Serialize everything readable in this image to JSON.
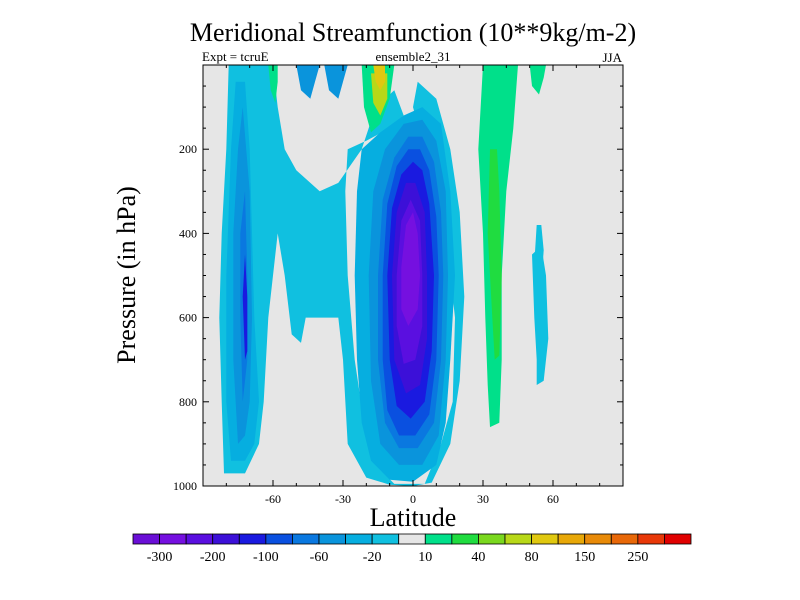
{
  "chart_data": {
    "type": "contour",
    "title": "Meridional Streamfunction (10**9kg/m-2)",
    "subtitle_left": "Expt = tcruE",
    "subtitle_center": "ensemble2_31",
    "subtitle_right": "JJA",
    "xlabel": "Latitude",
    "ylabel": "Pressure (in hPa)",
    "xlim": [
      -90,
      90
    ],
    "ylim": [
      1000,
      0
    ],
    "x_ticks": [
      -60,
      -30,
      0,
      30,
      60
    ],
    "y_ticks": [
      200,
      400,
      600,
      800,
      1000
    ],
    "x_tick_labels": [
      "-60",
      "-30",
      "0",
      "30",
      "60"
    ],
    "y_tick_labels": [
      "200",
      "400",
      "600",
      "800",
      "1000"
    ],
    "background_level_color": "#e6e6e6",
    "colorbar": {
      "colors": [
        "#6a0fd6",
        "#7510e0",
        "#5a0fe0",
        "#3c10d8",
        "#1a1ae0",
        "#0a50e0",
        "#0a78e0",
        "#0a94dc",
        "#06aee0",
        "#10c0e0",
        "#e6e6e6",
        "#00e08a",
        "#20dc40",
        "#7ad81e",
        "#b8d818",
        "#e0c810",
        "#e8a808",
        "#e88a08",
        "#e86808",
        "#e83808",
        "#e00000"
      ],
      "labels": [
        "-300",
        "-200",
        "-100",
        "-60",
        "-20",
        "10",
        "40",
        "80",
        "150",
        "250"
      ],
      "label_after_box": [
        0,
        2,
        4,
        6,
        8,
        10,
        12,
        14,
        16,
        18
      ]
    },
    "regions": [
      {
        "name": "sh-cell-outer",
        "level": "-20",
        "color": "#10c0e0",
        "points": [
          [
            -81,
            970
          ],
          [
            -82,
            800
          ],
          [
            -83,
            600
          ],
          [
            -82,
            400
          ],
          [
            -80,
            200
          ],
          [
            -79,
            0
          ],
          [
            -60,
            0
          ],
          [
            -58,
            100
          ],
          [
            -55,
            200
          ],
          [
            -50,
            250
          ],
          [
            -40,
            300
          ],
          [
            -32,
            280
          ],
          [
            -22,
            200
          ],
          [
            -16,
            100
          ],
          [
            -8,
            60
          ],
          [
            -4,
            120
          ],
          [
            -10,
            150
          ],
          [
            -20,
            180
          ],
          [
            -28,
            200
          ],
          [
            -29,
            300
          ],
          [
            -28,
            500
          ],
          [
            -25,
            700
          ],
          [
            -21,
            850
          ],
          [
            -16,
            950
          ],
          [
            -8,
            995
          ],
          [
            5,
            995
          ],
          [
            12,
            900
          ],
          [
            17,
            800
          ],
          [
            18,
            600
          ],
          [
            16,
            500
          ],
          [
            14,
            400
          ],
          [
            10,
            300
          ],
          [
            5,
            200
          ],
          [
            0,
            100
          ],
          [
            2,
            40
          ],
          [
            10,
            80
          ],
          [
            16,
            200
          ],
          [
            20,
            350
          ],
          [
            22,
            550
          ],
          [
            20,
            750
          ],
          [
            16,
            900
          ],
          [
            8,
            992
          ],
          [
            0,
            1000
          ],
          [
            -10,
            997
          ],
          [
            -20,
            980
          ],
          [
            -28,
            900
          ],
          [
            -30,
            700
          ],
          [
            -32,
            600
          ],
          [
            -46,
            600
          ],
          [
            -48,
            660
          ],
          [
            -52,
            640
          ],
          [
            -55,
            500
          ],
          [
            -58,
            400
          ],
          [
            -62,
            600
          ],
          [
            -64,
            800
          ],
          [
            -66,
            900
          ],
          [
            -72,
            970
          ]
        ]
      },
      {
        "name": "sh-cell-level2",
        "level": "-60",
        "color": "#06aee0",
        "points": [
          [
            -78,
            940
          ],
          [
            -80,
            800
          ],
          [
            -80,
            500
          ],
          [
            -78,
            200
          ],
          [
            -76,
            40
          ],
          [
            -72,
            40
          ],
          [
            -70,
            200
          ],
          [
            -68,
            600
          ],
          [
            -66,
            800
          ],
          [
            -68,
            900
          ],
          [
            -72,
            940
          ]
        ]
      },
      {
        "name": "sh-cell-level3",
        "level": "-100",
        "color": "#0a94dc",
        "points": [
          [
            -75,
            900
          ],
          [
            -77,
            700
          ],
          [
            -77,
            400
          ],
          [
            -75,
            200
          ],
          [
            -73,
            100
          ],
          [
            -70,
            300
          ],
          [
            -69,
            600
          ],
          [
            -70,
            800
          ],
          [
            -72,
            880
          ]
        ]
      },
      {
        "name": "sh-cell-level4",
        "level": "-100",
        "color": "#0a78e0",
        "points": [
          [
            -73,
            800
          ],
          [
            -74,
            600
          ],
          [
            -74,
            400
          ],
          [
            -72,
            300
          ],
          [
            -71,
            500
          ],
          [
            -71,
            700
          ]
        ]
      },
      {
        "name": "sh-cell-level5",
        "level": "-200",
        "color": "#1a1ae0",
        "points": [
          [
            -72,
            700
          ],
          [
            -73,
            550
          ],
          [
            -72,
            450
          ],
          [
            -71,
            550
          ],
          [
            -71,
            680
          ]
        ]
      },
      {
        "name": "hadley-cell-level2",
        "level": "-60",
        "color": "#06aee0",
        "points": [
          [
            -24,
            300
          ],
          [
            -22,
            200
          ],
          [
            -14,
            160
          ],
          [
            -4,
            120
          ],
          [
            4,
            100
          ],
          [
            12,
            140
          ],
          [
            16,
            300
          ],
          [
            18,
            500
          ],
          [
            16,
            700
          ],
          [
            14,
            850
          ],
          [
            10,
            950
          ],
          [
            0,
            990
          ],
          [
            -10,
            985
          ],
          [
            -18,
            940
          ],
          [
            -22,
            850
          ],
          [
            -24,
            700
          ],
          [
            -25,
            500
          ]
        ]
      },
      {
        "name": "hadley-cell-level3",
        "level": "-100",
        "color": "#0a94dc",
        "points": [
          [
            -19,
            500
          ],
          [
            -17,
            300
          ],
          [
            -12,
            200
          ],
          [
            -4,
            140
          ],
          [
            4,
            130
          ],
          [
            10,
            180
          ],
          [
            14,
            300
          ],
          [
            15,
            500
          ],
          [
            14,
            700
          ],
          [
            11,
            880
          ],
          [
            4,
            950
          ],
          [
            -6,
            950
          ],
          [
            -14,
            900
          ],
          [
            -18,
            750
          ]
        ]
      },
      {
        "name": "hadley-cell-level4",
        "level": "-100",
        "color": "#0a78e0",
        "points": [
          [
            -15,
            500
          ],
          [
            -13,
            320
          ],
          [
            -8,
            220
          ],
          [
            -2,
            170
          ],
          [
            4,
            170
          ],
          [
            9,
            230
          ],
          [
            12,
            350
          ],
          [
            13,
            500
          ],
          [
            12,
            700
          ],
          [
            9,
            850
          ],
          [
            2,
            910
          ],
          [
            -6,
            910
          ],
          [
            -12,
            850
          ],
          [
            -15,
            700
          ]
        ]
      },
      {
        "name": "hadley-cell-level5",
        "level": "-200",
        "color": "#0a50e0",
        "points": [
          [
            -13,
            500
          ],
          [
            -11,
            330
          ],
          [
            -7,
            240
          ],
          [
            -2,
            200
          ],
          [
            3,
            200
          ],
          [
            7,
            250
          ],
          [
            10,
            360
          ],
          [
            11,
            500
          ],
          [
            10,
            700
          ],
          [
            7,
            830
          ],
          [
            1,
            880
          ],
          [
            -6,
            880
          ],
          [
            -11,
            820
          ],
          [
            -13,
            700
          ]
        ]
      },
      {
        "name": "hadley-cell-level6",
        "level": "-200",
        "color": "#1a1ae0",
        "points": [
          [
            -11,
            500
          ],
          [
            -9,
            340
          ],
          [
            -5,
            260
          ],
          [
            0,
            230
          ],
          [
            4,
            250
          ],
          [
            7,
            330
          ],
          [
            9,
            500
          ],
          [
            8,
            680
          ],
          [
            5,
            800
          ],
          [
            -1,
            840
          ],
          [
            -7,
            810
          ],
          [
            -10,
            700
          ]
        ]
      },
      {
        "name": "hadley-cell-level7",
        "level": "-300",
        "color": "#3c10d8",
        "points": [
          [
            -9,
            500
          ],
          [
            -7,
            350
          ],
          [
            -3,
            280
          ],
          [
            1,
            280
          ],
          [
            5,
            350
          ],
          [
            6,
            500
          ],
          [
            6,
            650
          ],
          [
            3,
            760
          ],
          [
            -3,
            780
          ],
          [
            -8,
            700
          ]
        ]
      },
      {
        "name": "hadley-cell-level8",
        "level": "-300",
        "color": "#5a0fe0",
        "points": [
          [
            -7,
            500
          ],
          [
            -5,
            370
          ],
          [
            -1,
            320
          ],
          [
            3,
            370
          ],
          [
            4,
            500
          ],
          [
            4,
            620
          ],
          [
            1,
            700
          ],
          [
            -4,
            710
          ],
          [
            -7,
            620
          ]
        ]
      },
      {
        "name": "hadley-cell-core",
        "level": "-300",
        "color": "#7510e0",
        "points": [
          [
            -5,
            480
          ],
          [
            -3,
            380
          ],
          [
            0,
            350
          ],
          [
            2,
            400
          ],
          [
            3,
            500
          ],
          [
            2,
            580
          ],
          [
            -2,
            620
          ],
          [
            -5,
            580
          ]
        ]
      },
      {
        "name": "upper-sh-blue-patch-1",
        "level": "-100",
        "color": "#0a94dc",
        "points": [
          [
            -50,
            0
          ],
          [
            -48,
            60
          ],
          [
            -44,
            80
          ],
          [
            -42,
            40
          ],
          [
            -40,
            0
          ]
        ]
      },
      {
        "name": "upper-sh-blue-patch-2",
        "level": "-100",
        "color": "#0a94dc",
        "points": [
          [
            -38,
            0
          ],
          [
            -36,
            60
          ],
          [
            -32,
            80
          ],
          [
            -30,
            40
          ],
          [
            -28,
            0
          ]
        ]
      },
      {
        "name": "upper-sh-green-1",
        "level": "10",
        "color": "#00e08a",
        "points": [
          [
            -62,
            0
          ],
          [
            -61,
            60
          ],
          [
            -59,
            90
          ],
          [
            -58,
            40
          ],
          [
            -58,
            0
          ]
        ]
      },
      {
        "name": "upper-sh-green-2",
        "level": "10",
        "color": "#00e08a",
        "points": [
          [
            -22,
            0
          ],
          [
            -21,
            100
          ],
          [
            -18,
            160
          ],
          [
            -14,
            140
          ],
          [
            -10,
            80
          ],
          [
            -8,
            0
          ]
        ]
      },
      {
        "name": "upper-sh-yellow",
        "level": "80",
        "color": "#b8d818",
        "points": [
          [
            -18,
            20
          ],
          [
            -17,
            90
          ],
          [
            -14,
            120
          ],
          [
            -11,
            80
          ],
          [
            -11,
            20
          ]
        ]
      },
      {
        "name": "upper-sh-orange",
        "level": "150",
        "color": "#e0c810",
        "points": [
          [
            -17,
            0
          ],
          [
            -16,
            40
          ],
          [
            -14,
            60
          ],
          [
            -12,
            40
          ],
          [
            -12,
            0
          ]
        ]
      },
      {
        "name": "nh-green-cell",
        "level": "10",
        "color": "#00e08a",
        "points": [
          [
            30,
            0
          ],
          [
            28,
            200
          ],
          [
            30,
            400
          ],
          [
            31,
            600
          ],
          [
            32,
            760
          ],
          [
            33,
            860
          ],
          [
            37,
            850
          ],
          [
            38,
            700
          ],
          [
            38,
            500
          ],
          [
            40,
            300
          ],
          [
            43,
            150
          ],
          [
            45,
            0
          ]
        ]
      },
      {
        "name": "nh-green-cell-inner",
        "level": "40",
        "color": "#20dc40",
        "points": [
          [
            33,
            200
          ],
          [
            32,
            400
          ],
          [
            34,
            600
          ],
          [
            35,
            700
          ],
          [
            37,
            690
          ],
          [
            38,
            500
          ],
          [
            37,
            300
          ],
          [
            36,
            200
          ]
        ]
      },
      {
        "name": "nh-right-blue",
        "level": "-20",
        "color": "#10c0e0",
        "points": [
          [
            51,
            450
          ],
          [
            52,
            600
          ],
          [
            53,
            700
          ],
          [
            53,
            760
          ],
          [
            56,
            750
          ],
          [
            58,
            650
          ],
          [
            57,
            500
          ],
          [
            55,
            430
          ]
        ]
      },
      {
        "name": "nh-right-blue-lower",
        "level": "-20",
        "color": "#10c0e0",
        "points": [
          [
            53,
            380
          ],
          [
            52,
            470
          ],
          [
            53,
            540
          ],
          [
            55,
            520
          ],
          [
            56,
            440
          ],
          [
            55,
            380
          ]
        ]
      },
      {
        "name": "nh-right-green-top",
        "level": "10",
        "color": "#00e08a",
        "points": [
          [
            50,
            0
          ],
          [
            51,
            50
          ],
          [
            54,
            70
          ],
          [
            56,
            30
          ],
          [
            57,
            0
          ]
        ]
      }
    ]
  }
}
